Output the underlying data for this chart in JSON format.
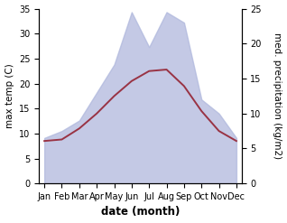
{
  "months": [
    "Jan",
    "Feb",
    "Mar",
    "Apr",
    "May",
    "Jun",
    "Jul",
    "Aug",
    "Sep",
    "Oct",
    "Nov",
    "Dec"
  ],
  "month_positions": [
    0,
    1,
    2,
    3,
    4,
    5,
    6,
    7,
    8,
    9,
    10,
    11
  ],
  "max_temp": [
    8.5,
    8.8,
    11.0,
    14.0,
    17.5,
    20.5,
    22.5,
    22.8,
    19.5,
    14.5,
    10.5,
    8.5
  ],
  "precipitation": [
    6.5,
    7.5,
    9.0,
    13.0,
    17.0,
    24.5,
    19.5,
    24.5,
    23.0,
    12.0,
    10.0,
    6.5
  ],
  "temp_ylim": [
    0,
    35
  ],
  "precip_ylim": [
    0,
    25
  ],
  "temp_color": "#993344",
  "precip_fill_color": "#b0b8dd",
  "precip_fill_alpha": 0.75,
  "xlabel": "date (month)",
  "ylabel_left": "max temp (C)",
  "ylabel_right": "med. precipitation (kg/m2)",
  "bg_color": "#ffffff",
  "xlabel_fontsize": 8.5,
  "ylabel_fontsize": 7.5,
  "tick_fontsize": 7.0,
  "yticks_left": [
    0,
    5,
    10,
    15,
    20,
    25,
    30,
    35
  ],
  "yticks_right": [
    0,
    5,
    10,
    15,
    20,
    25
  ]
}
